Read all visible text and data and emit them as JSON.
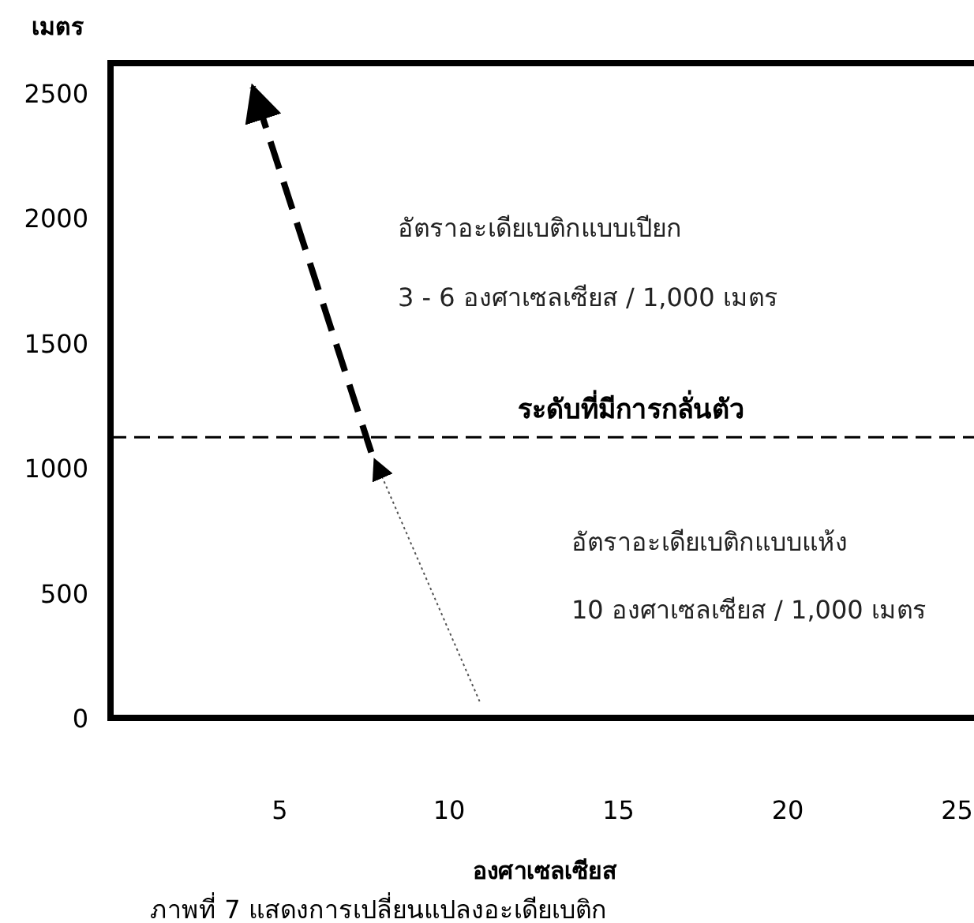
{
  "chart_data": {
    "type": "line",
    "xlabel": "องศาเซลเซียส",
    "ylabel": "เมตร",
    "xlim": [
      0,
      25.5
    ],
    "ylim": [
      0,
      2620
    ],
    "xticks": [
      5,
      10,
      15,
      20,
      25
    ],
    "yticks": [
      0,
      500,
      1000,
      1500,
      2000,
      2500
    ],
    "marker": "none",
    "series": [
      {
        "color": "#000000",
        "line_style": "dashed",
        "x": [
          7.7,
          4.2
        ],
        "values": [
          1063,
          2525
        ]
      },
      {
        "color": "#555555",
        "line_style": "dotted",
        "x": [
          10.9,
          7.8
        ],
        "values": [
          66,
          1033
        ]
      }
    ],
    "ref_lines": [
      {
        "axis": "y",
        "value": 1123,
        "label": "ระดับที่มีการกลั่นตัว",
        "line_style": "dashed",
        "color": "#000000"
      }
    ],
    "annotations": [
      "อัตราอะเดียเบติกแบบเปียก",
      "3 - 6 องศาเซลเซียส / 1,000 เมตร",
      "อัตราอะเดียเบติกแบบแห้ง",
      "10 องศาเซลเซียส / 1,000 เมตร",
      "ภาพที่ 7 แสดงการเปลี่ยนแปลงอะเดียเบติก"
    ]
  }
}
